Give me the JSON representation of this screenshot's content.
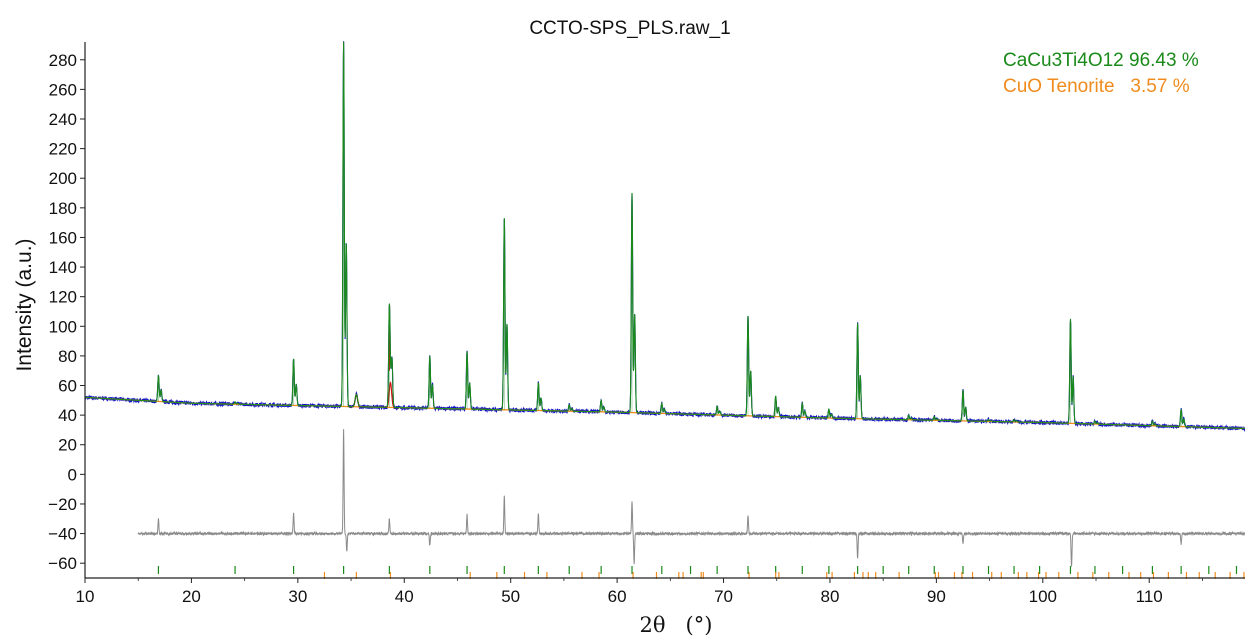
{
  "chart_data": {
    "type": "line",
    "title": "CCTO-SPS_PLS.raw_1",
    "xlabel": "2θ   (°)",
    "ylabel": "Intensity (a.u.)",
    "xlim": [
      10,
      119
    ],
    "ylim": [
      -70,
      292
    ],
    "x_ticks": [
      10,
      20,
      30,
      40,
      50,
      60,
      70,
      80,
      90,
      100,
      110
    ],
    "y_ticks": [
      -60,
      -40,
      -20,
      0,
      20,
      40,
      60,
      80,
      100,
      120,
      140,
      160,
      180,
      200,
      220,
      240,
      260,
      280
    ],
    "grid": false,
    "legend": {
      "placement": "top-right",
      "entries": [
        {
          "label": "CaCu3Ti4O12 96.43 %",
          "color": "#1a8a1a"
        },
        {
          "label": "CuO Tenorite   3.57 %",
          "color": "#f08c1e"
        }
      ]
    },
    "colors": {
      "observed": "#1010c8",
      "calculated": "#1a8a1a",
      "background": "#f08c1e",
      "cuo_peak": "#d01010",
      "difference": "#8a8a8a"
    },
    "background_line": {
      "x": [
        10,
        20,
        40,
        60,
        80,
        100,
        119
      ],
      "y": [
        52,
        48,
        45,
        42,
        38,
        35,
        31
      ]
    },
    "series": [
      {
        "name": "CaCu3Ti4O12 96.43 %",
        "peaks": [
          {
            "x": 16.9,
            "y": 67
          },
          {
            "x": 24.1,
            "y": 49
          },
          {
            "x": 29.6,
            "y": 78
          },
          {
            "x": 34.3,
            "y": 292
          },
          {
            "x": 38.6,
            "y": 104
          },
          {
            "x": 42.4,
            "y": 80
          },
          {
            "x": 45.9,
            "y": 83
          },
          {
            "x": 49.4,
            "y": 173
          },
          {
            "x": 52.6,
            "y": 62
          },
          {
            "x": 55.5,
            "y": 47
          },
          {
            "x": 58.5,
            "y": 50
          },
          {
            "x": 61.4,
            "y": 190
          },
          {
            "x": 64.2,
            "y": 48
          },
          {
            "x": 69.4,
            "y": 46
          },
          {
            "x": 72.3,
            "y": 107
          },
          {
            "x": 74.9,
            "y": 53
          },
          {
            "x": 77.4,
            "y": 48
          },
          {
            "x": 79.9,
            "y": 44
          },
          {
            "x": 82.6,
            "y": 102
          },
          {
            "x": 87.4,
            "y": 40
          },
          {
            "x": 89.8,
            "y": 39
          },
          {
            "x": 92.5,
            "y": 57
          },
          {
            "x": 94.9,
            "y": 37
          },
          {
            "x": 97.3,
            "y": 37
          },
          {
            "x": 102.6,
            "y": 105
          },
          {
            "x": 104.9,
            "y": 36
          },
          {
            "x": 110.3,
            "y": 36
          },
          {
            "x": 113.0,
            "y": 44
          }
        ]
      },
      {
        "name": "CuO Tenorite   3.57 %",
        "peaks": [
          {
            "x": 35.5,
            "y": 54
          },
          {
            "x": 38.7,
            "y": 62
          }
        ]
      }
    ],
    "difference_curve": {
      "x_start": 15,
      "baseline": -40,
      "features": [
        {
          "x": 16.9,
          "y": -30
        },
        {
          "x": 29.6,
          "y": -26
        },
        {
          "x": 34.3,
          "y": 30
        },
        {
          "x": 34.6,
          "y": -52
        },
        {
          "x": 38.6,
          "y": -30
        },
        {
          "x": 42.4,
          "y": -48
        },
        {
          "x": 45.9,
          "y": -27
        },
        {
          "x": 49.4,
          "y": -15
        },
        {
          "x": 52.6,
          "y": -27
        },
        {
          "x": 61.4,
          "y": -18
        },
        {
          "x": 61.6,
          "y": -60
        },
        {
          "x": 72.3,
          "y": -28
        },
        {
          "x": 82.6,
          "y": -57
        },
        {
          "x": 92.5,
          "y": -47
        },
        {
          "x": 102.7,
          "y": -63
        },
        {
          "x": 113.0,
          "y": -47
        }
      ]
    },
    "reflection_ticks": {
      "CaCu3Ti4O12": [
        16.9,
        24.1,
        29.6,
        34.3,
        38.6,
        42.4,
        45.9,
        49.4,
        52.6,
        55.5,
        58.5,
        61.4,
        64.2,
        66.9,
        69.4,
        72.3,
        74.9,
        77.4,
        79.9,
        82.6,
        85.0,
        87.4,
        89.8,
        92.5,
        94.9,
        97.3,
        99.7,
        102.6,
        104.9,
        107.5,
        110.3,
        113.0,
        115.6,
        118.2
      ],
      "CuO Tenorite": [
        32.5,
        35.5,
        38.7,
        46.2,
        48.7,
        51.3,
        53.4,
        56.7,
        58.3,
        61.5,
        63.7,
        65.8,
        66.2,
        67.9,
        68.1,
        72.4,
        74.9,
        75.2,
        79.7,
        80.2,
        82.3,
        83.1,
        83.6,
        84.3,
        86.5,
        89.9,
        90.2,
        91.7,
        92.4,
        93.4,
        95.2,
        96.1,
        97.7,
        98.5,
        99.6,
        100.3,
        101.5,
        103.3,
        104.7,
        106.2,
        108.1,
        109.2,
        110.4,
        111.8,
        113.5,
        114.7,
        116.2,
        117.6,
        118.9
      ]
    }
  }
}
